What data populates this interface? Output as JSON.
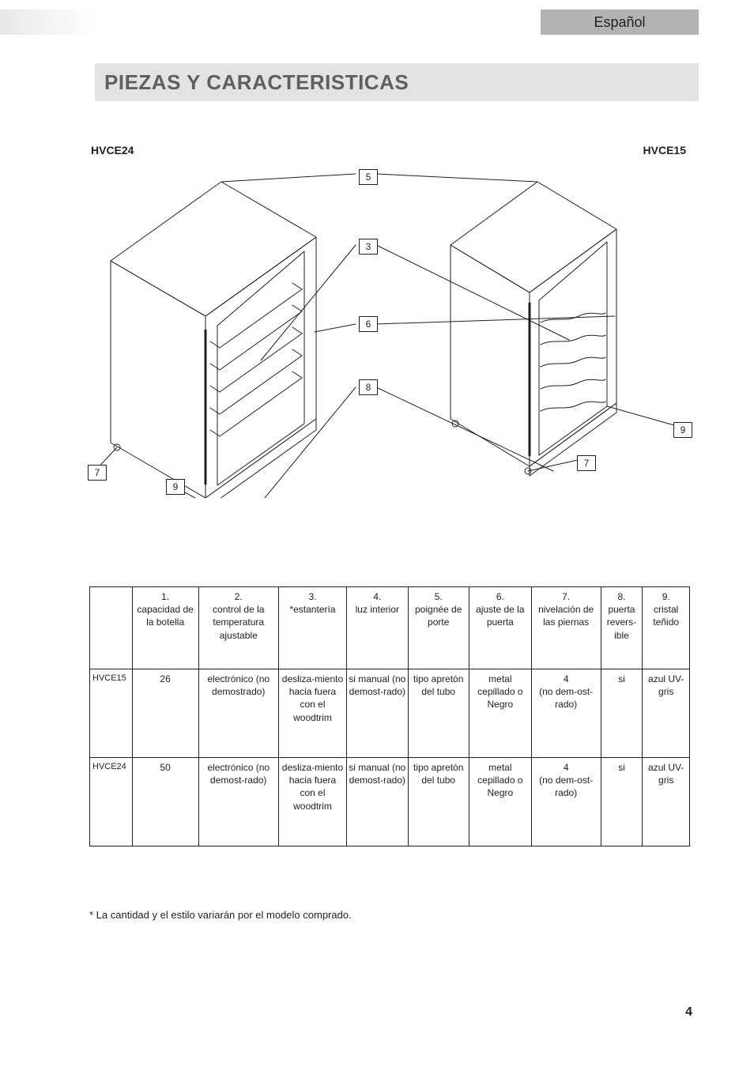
{
  "header": {
    "language_tab": "Español",
    "title": "PIEZAS Y CARACTERISTICAS"
  },
  "diagram": {
    "left_model_label": "HVCE24",
    "right_model_label": "HVCE15",
    "callouts": {
      "c5": "5",
      "c3": "3",
      "c6": "6",
      "c8": "8",
      "c7l": "7",
      "c9l": "9",
      "c7r": "7",
      "c9r": "9"
    }
  },
  "table": {
    "col_widths_pct": [
      7.2,
      11.3,
      13.6,
      11.6,
      10.4,
      10.4,
      10.6,
      11.8,
      7.1,
      8.0
    ],
    "headers": [
      "",
      "1.\ncapacidad de la botella",
      "2.\ncontrol de la temperatura ajustable",
      "3.\n*estantería",
      "4.\nluz interior",
      "5.\npoignée de porte",
      "6.\najuste de la puerta",
      "7.\nnivelación de las piernas",
      "8.\npuerta revers-ible",
      "9.\ncristal teñido"
    ],
    "rows": [
      {
        "model": "HVCE15",
        "cells": [
          "26",
          "electrónico (no demostrado)",
          "desliza-miento hacia fuera con el woodtrim",
          "si manual (no demost-rado)",
          "tipo apretón del tubo",
          "metal cepillado o Negro",
          "4\n(no dem-ost-rado)",
          "si",
          "azul UV-gris"
        ]
      },
      {
        "model": "HVCE24",
        "cells": [
          "50",
          "electrónico (no demost-rado)",
          "desliza-miento hacia fuera con el woodtrim",
          "si manual (no demost-rado)",
          "tipo apretón del tubo",
          "metal cepillado o Negro",
          "4\n(no dem-ost-rado)",
          "si",
          "azul UV-gris"
        ]
      }
    ]
  },
  "footnote": "* La cantidad y el estilo variarán por el modelo comprado.",
  "page_number": "4",
  "colors": {
    "tab_bg": "#b3b3b3",
    "title_bg": "#e3e3e3",
    "title_fg": "#5f5f5f",
    "line": "#231f20"
  }
}
